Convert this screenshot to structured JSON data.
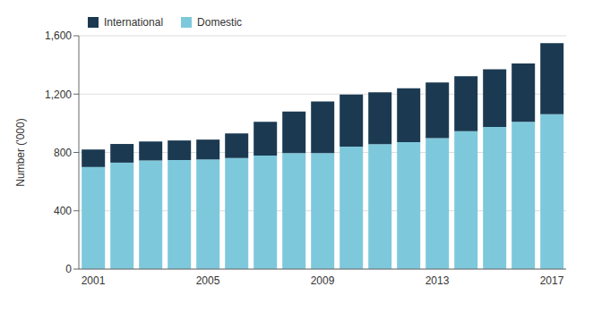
{
  "chart_data": {
    "type": "bar",
    "stacked": true,
    "ylabel": "Number ('000)",
    "categories": [
      "2001",
      null,
      null,
      null,
      "2005",
      null,
      null,
      null,
      "2009",
      null,
      null,
      null,
      "2013",
      null,
      null,
      null,
      "2017"
    ],
    "series": [
      {
        "name": "Domestic",
        "color": "#7EC8DC",
        "values": [
          700,
          730,
          745,
          748,
          752,
          762,
          778,
          795,
          795,
          840,
          857,
          870,
          898,
          945,
          975,
          1010,
          1062
        ]
      },
      {
        "name": "International",
        "color": "#1B3A52",
        "values": [
          120,
          128,
          130,
          134,
          136,
          168,
          232,
          285,
          355,
          357,
          355,
          370,
          382,
          377,
          395,
          400,
          488
        ]
      }
    ],
    "ylim": [
      0,
      1600
    ],
    "yticks": [
      0,
      400,
      800,
      {
        "value": 1200,
        "label": "1,200"
      },
      {
        "value": 1600,
        "label": "1,600"
      }
    ],
    "grid": true,
    "legend": "upper left"
  }
}
